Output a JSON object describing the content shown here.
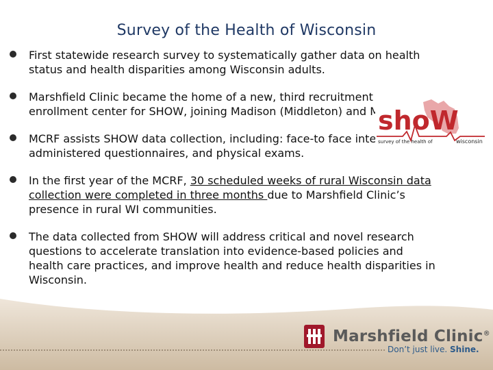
{
  "slide": {
    "title": "Survey of the Health of Wisconsin",
    "bullets": [
      {
        "lines": [
          "First statewide research survey to systematically gather data on health",
          "status and health disparities among Wisconsin adults."
        ]
      },
      {
        "lines": [
          "Marshfield Clinic became the home of a new, third recruitment and",
          "enrollment center for SHOW, joining Madison (Middleton) and Mi"
        ]
      },
      {
        "lines": [
          "MCRF assists SHOW data collection, including: face-to face intervie",
          "administered questionnaires, and physical exams."
        ]
      },
      {
        "line1_pre": "In the first year of the MCRF, ",
        "line1_u": "30 scheduled weeks of rural Wisconsin data",
        "line2_u": "collection were completed in three months ",
        "line2_post": "due to Marshfield Clinic’s",
        "line3": "presence in rural WI communities."
      },
      {
        "lines": [
          "The data collected from SHOW will address critical and novel research",
          "questions to accelerate translation into evidence-based policies and",
          "health care practices, and improve health and reduce health disparities in",
          "Wisconsin."
        ]
      }
    ]
  },
  "show_logo": {
    "word": "shoW",
    "subtitle_left": "survey of the health of",
    "subtitle_right": "wisconsin",
    "color": "#c0282d",
    "map_color": "#e9a7a9"
  },
  "footer": {
    "brand": "Marshfield Clinic",
    "registered": "®",
    "tagline_plain": "Don’t just live.",
    "tagline_bold": "Shine.",
    "band_color": "#d8c8b2",
    "brand_red": "#a0182b"
  }
}
